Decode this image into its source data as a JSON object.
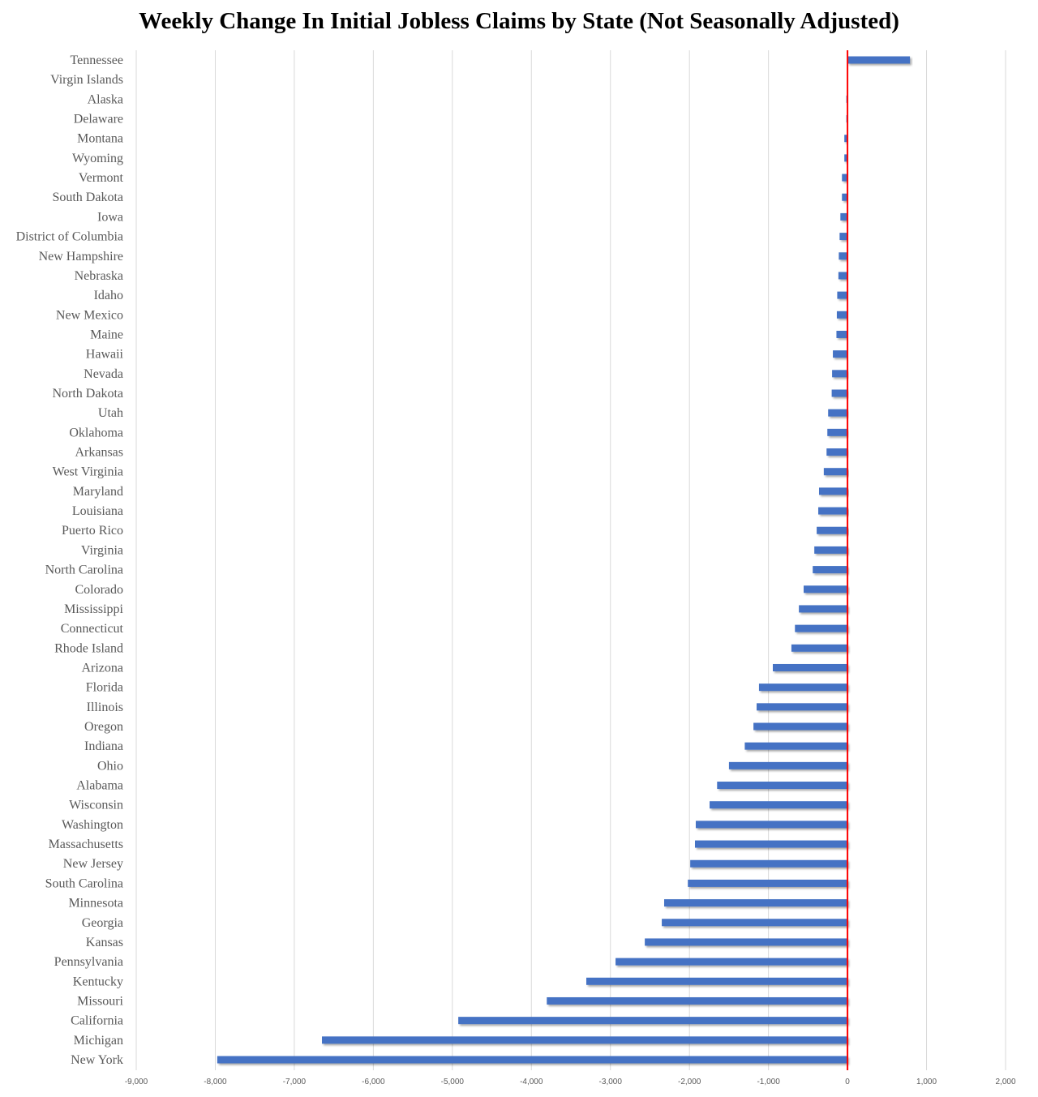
{
  "chart_data": {
    "type": "bar",
    "orientation": "horizontal",
    "title": "Weekly Change In Initial Jobless Claims by State (Not Seasonally Adjusted)",
    "xlabel": "",
    "ylabel": "",
    "xlim": [
      -9000,
      2000
    ],
    "xticks": [
      "-9,000",
      "-8,000",
      "-7,000",
      "-6,000",
      "-5,000",
      "-4,000",
      "-3,000",
      "-2,000",
      "-1,000",
      "0",
      "1,000",
      "2,000"
    ],
    "xtick_values": [
      -9000,
      -8000,
      -7000,
      -6000,
      -5000,
      -4000,
      -3000,
      -2000,
      -1000,
      0,
      1000,
      2000
    ],
    "grid": true,
    "bar_color": "#4472C4",
    "zero_line_color": "#FF0000",
    "categories": [
      "Tennessee",
      "Virgin Islands",
      "Alaska",
      "Delaware",
      "Montana",
      "Wyoming",
      "Vermont",
      "South Dakota",
      "Iowa",
      "District of Columbia",
      "New Hampshire",
      "Nebraska",
      "Idaho",
      "New Mexico",
      "Maine",
      "Hawaii",
      "Nevada",
      "North Dakota",
      "Utah",
      "Oklahoma",
      "Arkansas",
      "West Virginia",
      "Maryland",
      "Louisiana",
      "Puerto Rico",
      "Virginia",
      "North Carolina",
      "Colorado",
      "Mississippi",
      "Connecticut",
      "Rhode Island",
      "Arizona",
      "Florida",
      "Illinois",
      "Oregon",
      "Indiana",
      "Ohio",
      "Alabama",
      "Wisconsin",
      "Washington",
      "Massachusetts",
      "New Jersey",
      "South Carolina",
      "Minnesota",
      "Georgia",
      "Kansas",
      "Pennsylvania",
      "Kentucky",
      "Missouri",
      "California",
      "Michigan",
      "New York"
    ],
    "values": [
      790,
      0,
      -15,
      -15,
      -40,
      -40,
      -70,
      -70,
      -90,
      -100,
      -110,
      -115,
      -130,
      -135,
      -140,
      -185,
      -195,
      -200,
      -245,
      -255,
      -265,
      -300,
      -360,
      -370,
      -390,
      -420,
      -440,
      -555,
      -615,
      -665,
      -710,
      -945,
      -1120,
      -1150,
      -1190,
      -1300,
      -1500,
      -1650,
      -1745,
      -1920,
      -1930,
      -1990,
      -2020,
      -2320,
      -2350,
      -2565,
      -2935,
      -3305,
      -3805,
      -4925,
      -6650,
      -7975
    ]
  }
}
